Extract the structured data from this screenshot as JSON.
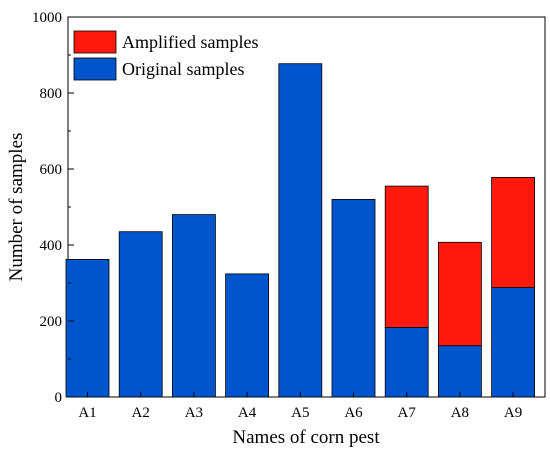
{
  "chart_data": {
    "type": "bar",
    "stacked": true,
    "categories": [
      "A1",
      "A2",
      "A3",
      "A4",
      "A5",
      "A6",
      "A7",
      "A8",
      "A9"
    ],
    "series": [
      {
        "name": "Original samples",
        "color": "#0055cc",
        "values": [
          362,
          435,
          480,
          324,
          877,
          520,
          183,
          135,
          288
        ]
      },
      {
        "name": "Amplified samples",
        "color": "#ff1a0d",
        "values": [
          0,
          0,
          0,
          0,
          0,
          0,
          372,
          272,
          290
        ]
      }
    ],
    "xlabel": "Names of corn pest",
    "ylabel": "Number of samples",
    "ylim": [
      0,
      1000
    ],
    "yticks": [
      0,
      200,
      400,
      600,
      800,
      1000
    ],
    "grid": false,
    "legend_position": "top-left",
    "legend_order": [
      "Amplified samples",
      "Original samples"
    ]
  }
}
